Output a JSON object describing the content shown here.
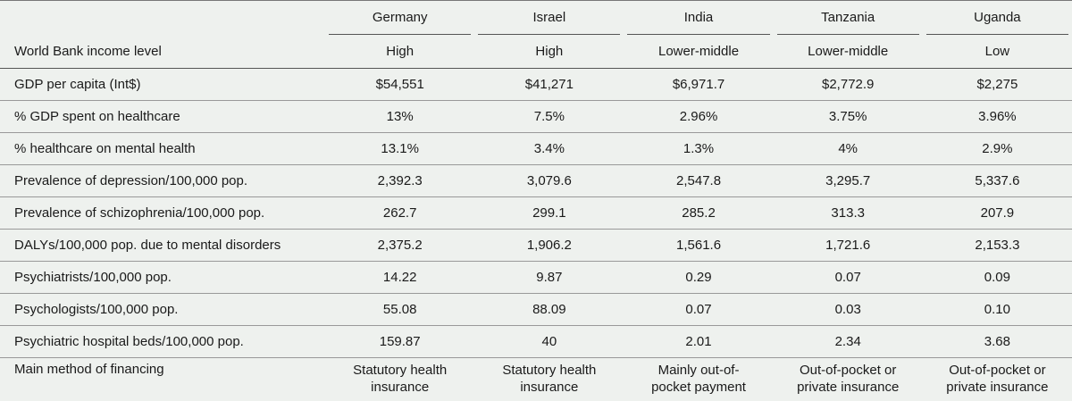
{
  "countries": [
    "Germany",
    "Israel",
    "India",
    "Tanzania",
    "Uganda"
  ],
  "income": {
    "label": "World Bank income level",
    "values": [
      "High",
      "High",
      "Lower-middle",
      "Lower-middle",
      "Low"
    ]
  },
  "rows": [
    {
      "label": "GDP per capita (Int$)",
      "values": [
        "$54,551",
        "$41,271",
        "$6,971.7",
        "$2,772.9",
        "$2,275"
      ]
    },
    {
      "label": "% GDP spent on healthcare",
      "values": [
        "13%",
        "7.5%",
        "2.96%",
        "3.75%",
        "3.96%"
      ]
    },
    {
      "label": "% healthcare on mental health",
      "values": [
        "13.1%",
        "3.4%",
        "1.3%",
        "4%",
        "2.9%"
      ]
    },
    {
      "label": "Prevalence of depression/100,000 pop.",
      "values": [
        "2,392.3",
        "3,079.6",
        "2,547.8",
        "3,295.7",
        "5,337.6"
      ]
    },
    {
      "label": "Prevalence of schizophrenia/100,000 pop.",
      "values": [
        "262.7",
        "299.1",
        "285.2",
        "313.3",
        "207.9"
      ]
    },
    {
      "label": "DALYs/100,000 pop. due to mental disorders",
      "values": [
        "2,375.2",
        "1,906.2",
        "1,561.6",
        "1,721.6",
        "2,153.3"
      ]
    },
    {
      "label": "Psychiatrists/100,000 pop.",
      "values": [
        "14.22",
        "9.87",
        "0.29",
        "0.07",
        "0.09"
      ]
    },
    {
      "label": "Psychologists/100,000 pop.",
      "values": [
        "55.08",
        "88.09",
        "0.07",
        "0.03",
        "0.10"
      ]
    },
    {
      "label": "Psychiatric hospital beds/100,000 pop.",
      "values": [
        "159.87",
        "40",
        "2.01",
        "2.34",
        "3.68"
      ]
    }
  ],
  "financing": {
    "label": "Main method of financing",
    "values": [
      [
        "Statutory health",
        "insurance"
      ],
      [
        "Statutory health",
        "insurance"
      ],
      [
        "Mainly out-of-",
        "pocket payment"
      ],
      [
        "Out-of-pocket or",
        "private insurance"
      ],
      [
        "Out-of-pocket or",
        "private insurance"
      ]
    ]
  }
}
